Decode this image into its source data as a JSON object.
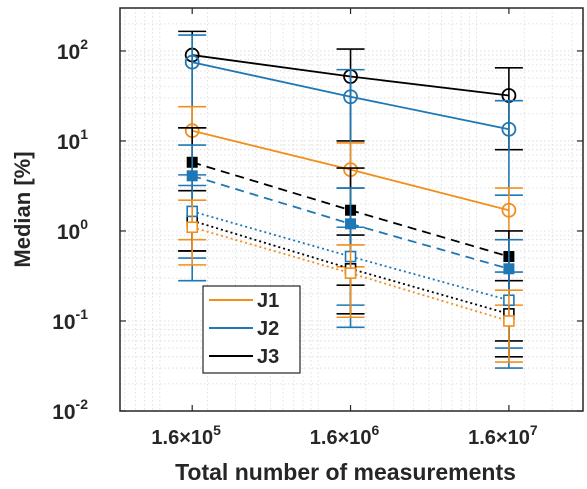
{
  "chart_data": {
    "type": "line",
    "title": "",
    "xlabel": "Total number of measurements",
    "ylabel": "Median [%]",
    "x_scale": "log",
    "y_scale": "log",
    "xlim": [
      56000,
      47000000
    ],
    "ylim": [
      0.01,
      300
    ],
    "grid": true,
    "x_ticks": [
      {
        "value": 160000,
        "mantissa": "1.6×10",
        "exp": "5"
      },
      {
        "value": 1600000,
        "mantissa": "1.6×10",
        "exp": "6"
      },
      {
        "value": 16000000,
        "mantissa": "1.6×10",
        "exp": "7"
      }
    ],
    "y_ticks": [
      {
        "value": 0.01,
        "base": "10",
        "exp": "-2"
      },
      {
        "value": 0.1,
        "base": "10",
        "exp": "-1"
      },
      {
        "value": 1,
        "base": "10",
        "exp": "0"
      },
      {
        "value": 10,
        "base": "10",
        "exp": "1"
      },
      {
        "value": 100,
        "base": "10",
        "exp": "2"
      }
    ],
    "legend": {
      "location": "lower-left",
      "entries": [
        {
          "name": "J1",
          "color": "#F28E1C"
        },
        {
          "name": "J2",
          "color": "#1F77B4"
        },
        {
          "name": "J3",
          "color": "#000000"
        }
      ]
    },
    "x": [
      160000,
      1600000,
      16000000
    ],
    "series": [
      {
        "name": "J3",
        "color": "#000000",
        "line": "solid",
        "marker": "circle-open",
        "y": [
          90,
          52,
          32
        ],
        "lower": [
          14,
          10,
          8
        ],
        "upper": [
          165,
          105,
          65
        ]
      },
      {
        "name": "J2",
        "color": "#1F77B4",
        "line": "solid",
        "marker": "circle-open",
        "y": [
          75,
          31,
          13.5
        ],
        "lower": [
          4.2,
          3,
          2.5
        ],
        "upper": [
          150,
          62,
          28
        ]
      },
      {
        "name": "J1",
        "color": "#F28E1C",
        "line": "solid",
        "marker": "circle-open",
        "y": [
          13,
          4.8,
          1.7
        ],
        "lower": [
          0.8,
          0.4,
          0.15
        ],
        "upper": [
          24,
          9.5,
          3
        ]
      },
      {
        "color": "#000000",
        "line": "dashed",
        "marker": "square-filled",
        "y": [
          5.8,
          1.7,
          0.52
        ],
        "lower": [
          0.6,
          0.25,
          0.06
        ],
        "upper": [
          14,
          5,
          1
        ]
      },
      {
        "color": "#1F77B4",
        "line": "dashed",
        "marker": "square-filled",
        "y": [
          4.1,
          1.2,
          0.38
        ],
        "lower": [
          0.28,
          0.085,
          0.03
        ],
        "upper": [
          9,
          3,
          0.8
        ]
      },
      {
        "color": "#000000",
        "line": "dotted",
        "marker": "square-open",
        "y": [
          1.3,
          0.38,
          0.12
        ],
        "lower": [
          0.6,
          0.12,
          0.04
        ],
        "upper": [
          2.8,
          0.9,
          0.28
        ]
      },
      {
        "color": "#1F77B4",
        "line": "dotted",
        "marker": "square-open",
        "y": [
          1.65,
          0.52,
          0.17
        ],
        "lower": [
          0.5,
          0.15,
          0.05
        ],
        "upper": [
          3.2,
          1.1,
          0.35
        ]
      },
      {
        "color": "#F28E1C",
        "line": "dotted",
        "marker": "square-open",
        "y": [
          1.1,
          0.34,
          0.1
        ],
        "lower": [
          0.42,
          0.11,
          0.035
        ],
        "upper": [
          2.2,
          0.7,
          0.22
        ]
      }
    ]
  }
}
